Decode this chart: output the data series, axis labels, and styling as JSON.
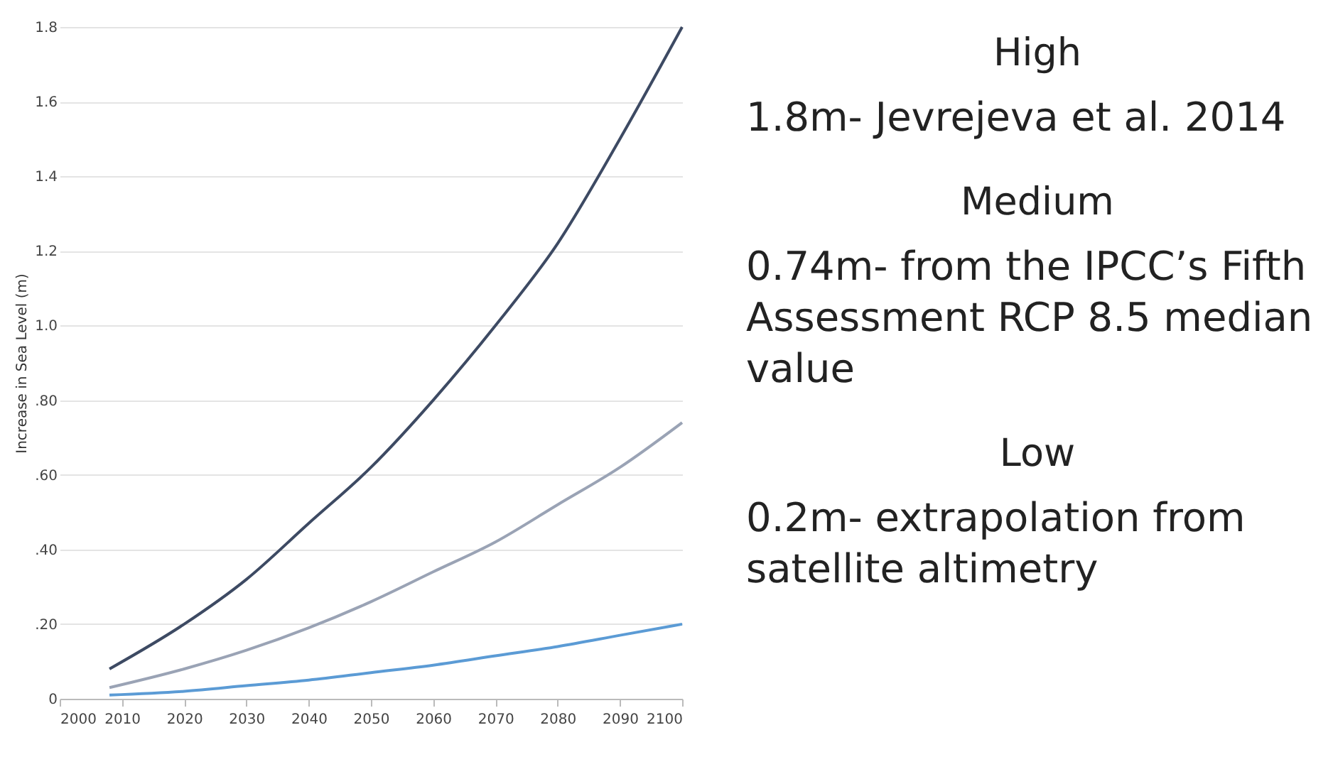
{
  "chart_data": {
    "type": "line",
    "ylabel": "Increase in Sea Level (m)",
    "x": [
      2008,
      2020,
      2030,
      2040,
      2050,
      2060,
      2070,
      2080,
      2090,
      2100
    ],
    "series": [
      {
        "color": "#3d4a63",
        "values": [
          0.08,
          0.2,
          0.32,
          0.47,
          0.62,
          0.8,
          1.0,
          1.22,
          1.5,
          1.8
        ]
      },
      {
        "color": "#9aa3b5",
        "values": [
          0.03,
          0.08,
          0.13,
          0.19,
          0.26,
          0.34,
          0.42,
          0.52,
          0.62,
          0.74
        ]
      },
      {
        "color": "#5b9bd5",
        "values": [
          0.01,
          0.02,
          0.035,
          0.05,
          0.07,
          0.09,
          0.115,
          0.14,
          0.17,
          0.2
        ]
      }
    ],
    "xlim": [
      2000,
      2100
    ],
    "xticks": [
      2000,
      2010,
      2020,
      2030,
      2040,
      2050,
      2060,
      2070,
      2080,
      2090,
      2100
    ],
    "ylim": [
      0,
      1.8
    ],
    "yticks": [
      0,
      {
        "value": 0.2,
        "label": ".20"
      },
      {
        "value": 0.4,
        "label": ".40"
      },
      {
        "value": 0.6,
        "label": ".60"
      },
      {
        "value": 0.8,
        "label": ".80"
      },
      {
        "value": 1.0,
        "label": "1.0"
      },
      1.2,
      1.4,
      1.6,
      1.8
    ],
    "grid": "y",
    "legend": false,
    "marker": "none",
    "line_style": "solid",
    "annotations": [
      "High",
      "1.8m- Jevrejeva et al. 2014",
      "Medium",
      "0.74m- from the IPCC’s Fifth Assessment RCP 8.5 median value",
      "Low",
      "0.2m- extrapolation from satellite altimetry"
    ]
  }
}
